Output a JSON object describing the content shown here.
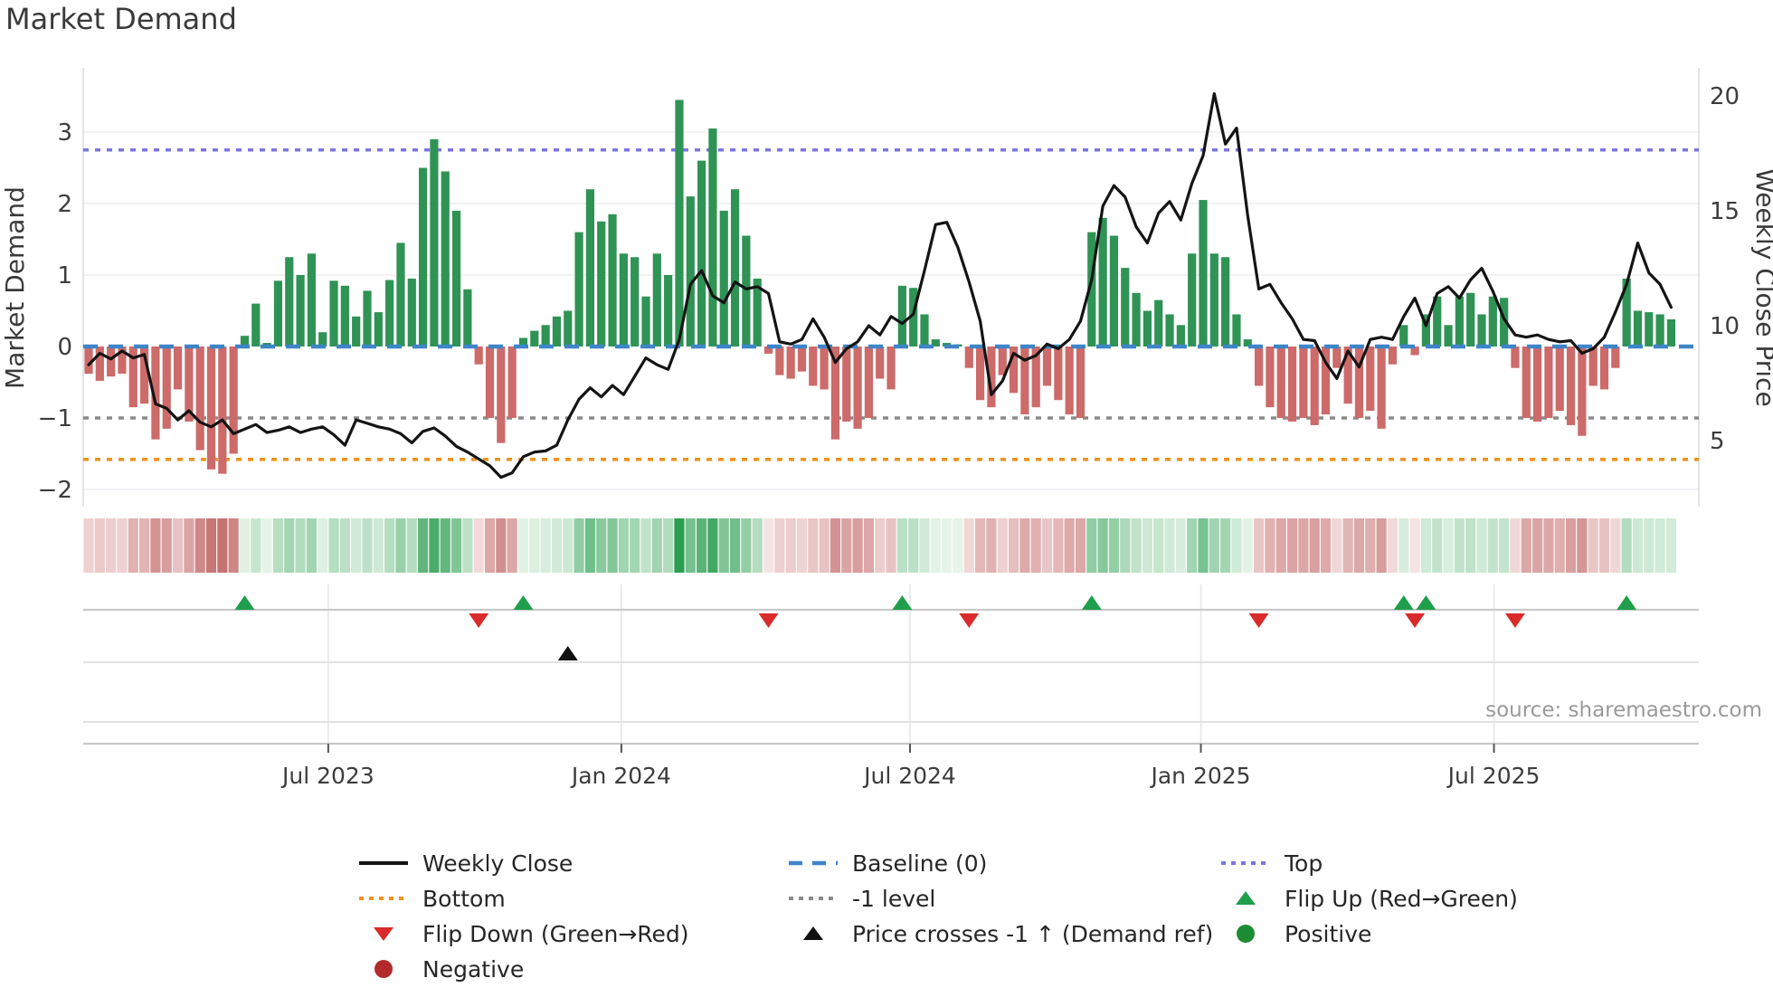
{
  "title": "Market Demand",
  "source": "source: sharemaestro.com",
  "legend": {
    "items": [
      {
        "id": "weekly-close",
        "label": "Weekly Close"
      },
      {
        "id": "baseline",
        "label": "Baseline (0)"
      },
      {
        "id": "top",
        "label": "Top"
      },
      {
        "id": "bottom",
        "label": "Bottom"
      },
      {
        "id": "minus-1",
        "label": "-1 level"
      },
      {
        "id": "flip-up",
        "label": "Flip Up (Red→Green)"
      },
      {
        "id": "flip-down",
        "label": "Flip Down (Green→Red)"
      },
      {
        "id": "price-cross",
        "label": "Price crosses -1 ↑ (Demand ref)"
      },
      {
        "id": "positive",
        "label": "Positive"
      },
      {
        "id": "negative",
        "label": "Negative"
      }
    ]
  },
  "colors": {
    "bar_positive": "#2f9355",
    "bar_negative": "#cd6a6a",
    "price_line": "#141414",
    "baseline": "#3d85c8",
    "top_line": "#7b74e0",
    "bottom_line": "#ef9320",
    "minus_one_line": "#8a8a8a",
    "flip_up": "#1f9e4c",
    "flip_down": "#d92b2b",
    "price_cross": "#111111",
    "positive_dot": "#1e8c34",
    "negative_dot": "#b22a2a",
    "heat_pos_max": "#2c9e52",
    "heat_neg_max": "#c67272",
    "grid": "#ededf2",
    "tick_text": "#3c3c3c",
    "source_text": "#9a9a9a"
  },
  "chart_data": {
    "type": "combo",
    "title": "Market Demand",
    "left_axis": {
      "label": "Market Demand",
      "ticks": [
        3,
        2,
        1,
        0,
        -1,
        -2
      ],
      "range": [
        -2.25,
        3.9
      ]
    },
    "right_axis": {
      "label": "Weekly Close Price",
      "ticks": [
        20,
        15,
        10,
        5
      ],
      "range": [
        2.1,
        21.2
      ]
    },
    "x_ticks": [
      {
        "label": "Jul 2023",
        "week": 21.5
      },
      {
        "label": "Jan 2024",
        "week": 47.8
      },
      {
        "label": "Jul 2024",
        "week": 73.7
      },
      {
        "label": "Jan 2025",
        "week": 99.8
      },
      {
        "label": "Jul 2025",
        "week": 126.1
      }
    ],
    "reference_lines": {
      "baseline": 0,
      "top": 2.75,
      "bottom": -1.58,
      "minus_one": -1
    },
    "series": [
      {
        "name": "Market Demand",
        "type": "bar",
        "values": [
          -0.38,
          -0.48,
          -0.42,
          -0.38,
          -0.85,
          -0.8,
          -1.3,
          -1.15,
          -0.6,
          -1.05,
          -1.45,
          -1.72,
          -1.78,
          -1.5,
          0.15,
          0.6,
          0.05,
          0.92,
          1.25,
          1.0,
          1.3,
          0.2,
          0.92,
          0.85,
          0.42,
          0.78,
          0.48,
          0.93,
          1.45,
          0.95,
          2.5,
          2.9,
          2.45,
          1.9,
          0.8,
          -0.25,
          -1.0,
          -1.35,
          -1.0,
          0.12,
          0.22,
          0.3,
          0.42,
          0.5,
          1.6,
          2.2,
          1.75,
          1.85,
          1.3,
          1.25,
          0.7,
          1.3,
          1.0,
          3.45,
          2.1,
          2.6,
          3.05,
          1.9,
          2.2,
          1.55,
          0.95,
          -0.1,
          -0.4,
          -0.45,
          -0.35,
          -0.55,
          -0.6,
          -1.3,
          -1.05,
          -1.15,
          -1.0,
          -0.45,
          -0.6,
          0.85,
          0.82,
          0.45,
          0.1,
          0.05,
          0.03,
          -0.3,
          -0.75,
          -0.85,
          -0.4,
          -0.65,
          -0.95,
          -0.85,
          -0.55,
          -0.75,
          -0.95,
          -1.0,
          1.6,
          1.8,
          1.55,
          1.1,
          0.75,
          0.5,
          0.65,
          0.45,
          0.3,
          1.3,
          2.05,
          1.3,
          1.25,
          0.45,
          0.1,
          -0.55,
          -0.85,
          -1.0,
          -1.05,
          -1.0,
          -1.1,
          -0.95,
          -0.3,
          -0.8,
          -1.0,
          -0.9,
          -1.15,
          -0.25,
          0.3,
          -0.12,
          0.45,
          0.7,
          0.3,
          0.7,
          0.75,
          0.45,
          0.7,
          0.68,
          -0.3,
          -1.0,
          -1.05,
          -1.0,
          -0.9,
          -1.1,
          -1.25,
          -0.55,
          -0.6,
          -0.3,
          0.95,
          0.5,
          0.48,
          0.45,
          0.38
        ]
      },
      {
        "name": "Weekly Close",
        "type": "line",
        "values": [
          8.3,
          8.8,
          8.55,
          8.9,
          8.6,
          8.75,
          6.6,
          6.4,
          5.9,
          6.3,
          5.8,
          5.6,
          5.9,
          5.3,
          5.5,
          5.7,
          5.35,
          5.45,
          5.6,
          5.35,
          5.5,
          5.6,
          5.25,
          4.8,
          5.9,
          5.75,
          5.6,
          5.5,
          5.3,
          4.9,
          5.4,
          5.55,
          5.2,
          4.75,
          4.5,
          4.2,
          3.9,
          3.4,
          3.6,
          4.3,
          4.5,
          4.55,
          4.8,
          5.9,
          6.8,
          7.3,
          6.9,
          7.4,
          7.0,
          7.8,
          8.6,
          8.3,
          8.1,
          9.4,
          11.8,
          12.4,
          11.3,
          11.0,
          11.9,
          11.6,
          11.7,
          11.4,
          9.3,
          9.2,
          9.4,
          10.3,
          9.5,
          8.4,
          9.0,
          9.3,
          10.0,
          9.6,
          10.4,
          10.1,
          10.5,
          12.4,
          14.4,
          14.5,
          13.4,
          11.9,
          10.2,
          7.0,
          7.6,
          8.8,
          8.5,
          8.7,
          9.2,
          9.0,
          9.4,
          10.2,
          12.0,
          15.2,
          16.1,
          15.6,
          14.3,
          13.6,
          14.9,
          15.4,
          14.6,
          16.2,
          17.4,
          20.1,
          17.9,
          18.6,
          14.8,
          11.6,
          11.8,
          11.0,
          10.3,
          9.4,
          9.35,
          8.4,
          7.7,
          8.9,
          8.2,
          9.4,
          9.5,
          9.4,
          10.4,
          11.2,
          10.0,
          11.4,
          11.7,
          11.2,
          12.0,
          12.5,
          11.5,
          10.3,
          9.6,
          9.5,
          9.6,
          9.4,
          9.3,
          9.35,
          8.8,
          9.0,
          9.5,
          10.6,
          11.8,
          13.6,
          12.3,
          11.8,
          10.8
        ]
      }
    ],
    "markers": {
      "flip_up_weeks": [
        14,
        39,
        73,
        90,
        118,
        120,
        138
      ],
      "flip_down_weeks": [
        35,
        61,
        79,
        105,
        119,
        128
      ],
      "price_cross_weeks": [
        43
      ]
    }
  }
}
